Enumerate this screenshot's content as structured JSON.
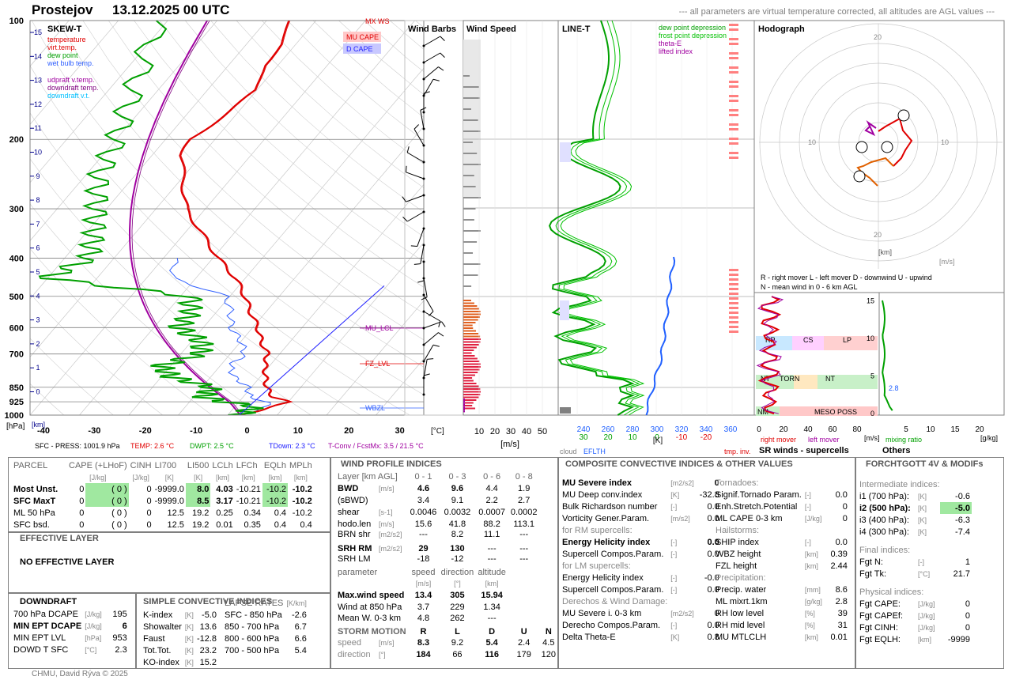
{
  "header": {
    "location": "Prostejov",
    "datetime": "13.12.2025 00 UTC",
    "note": "--- all parameters are virtual temperature corrected, all altitudes are AGL values ---"
  },
  "skewt": {
    "title": "SKEW-T",
    "legend": [
      {
        "t": "temperature",
        "c": "#e00000"
      },
      {
        "t": "virt.temp.",
        "c": "#e00000"
      },
      {
        "t": "dew point",
        "c": "#00a000"
      },
      {
        "t": "wet bulb temp.",
        "c": "#3060ff"
      },
      {
        "t": "udpraft v.temp.",
        "c": "#a000a0"
      },
      {
        "t": "downdraft temp.",
        "c": "#800080"
      },
      {
        "t": "downdraft v.t.",
        "c": "#00c0ff"
      }
    ],
    "pressure_ticks": [
      "100",
      "200",
      "300",
      "400",
      "500",
      "600",
      "700",
      "850",
      "925",
      "1000"
    ],
    "temp_ticks": [
      "-40",
      "-30",
      "-20",
      "-10",
      "0",
      "10",
      "20",
      "30"
    ],
    "km_ticks": [
      "15",
      "14",
      "13",
      "12",
      "11",
      "10",
      "9",
      "8",
      "7",
      "6",
      "5",
      "4",
      "3",
      "2",
      "1",
      "0"
    ],
    "p_unit": "[hPa]",
    "km_unit": "[km]",
    "t_unit": "[°C]",
    "labels": {
      "mxws": "MX WS",
      "mucape": "MU CAPE",
      "dcape": "D CAPE",
      "mulcl": "MU_LCL",
      "fzlvl": "FZ_LVL",
      "wbzl": "WBZL"
    },
    "footer": {
      "sfc": "SFC - PRESS: 1001.9 hPa",
      "temp": "TEMP: 2.6 °C",
      "dwpt": "DWPT: 2.5 °C",
      "tdown": "TDown: 2.3 °C",
      "tconv": "T-Conv / FcstMx: 3.5 / 21.5 °C"
    }
  },
  "chart_data": [
    {
      "type": "line",
      "title": "SKEW-T",
      "xlabel": "[°C]",
      "ylabel": "[hPa]",
      "ylim": [
        1000,
        100
      ],
      "xlim": [
        -40,
        40
      ],
      "series": [
        {
          "name": "temperature",
          "p": [
            1000,
            950,
            925,
            900,
            850,
            800,
            750,
            700,
            650,
            600,
            550,
            500,
            450,
            400,
            350,
            300,
            250,
            220,
            200,
            170,
            150,
            130,
            115,
            100
          ],
          "t": [
            2.6,
            8,
            10,
            6,
            3,
            1,
            -1,
            -2.5,
            -6,
            -9,
            -13,
            -17,
            -22,
            -29,
            -36,
            -44,
            -50,
            -54,
            -55,
            -52,
            -50,
            -53,
            -53,
            -55
          ]
        },
        {
          "name": "dew point",
          "p": [
            1000,
            950,
            925,
            900,
            850,
            800,
            750,
            700,
            650,
            600,
            550,
            500,
            450,
            400,
            350,
            300,
            250,
            200,
            150,
            100
          ],
          "t": [
            2.5,
            4,
            -3,
            -8,
            -8,
            -18,
            -22,
            -16,
            -18,
            -25,
            -25,
            -28,
            -60,
            -55,
            -58,
            -62,
            -67,
            -70,
            -75,
            -82
          ]
        }
      ]
    },
    {
      "type": "line",
      "title": "Wind Speed",
      "xlabel": "[m/s]",
      "x_ticks": [
        "10",
        "20",
        "30",
        "40",
        "50"
      ]
    },
    {
      "type": "line",
      "title": "LINE-T",
      "xlabel": "[K]",
      "x_ticks_1": [
        "240",
        "260",
        "280",
        "300",
        "320",
        "340",
        "360"
      ],
      "x_ticks_2": [
        "30",
        "20",
        "10",
        "0",
        "-10",
        "-20"
      ]
    },
    {
      "type": "scatter",
      "title": "Hodograph",
      "rings": [
        "10",
        "20"
      ]
    }
  ],
  "windbarbs": {
    "title": "Wind Barbs"
  },
  "windspeed": {
    "title": "Wind Speed",
    "unit": "[m/s]",
    "ticks": [
      "10",
      "20",
      "30",
      "40",
      "50"
    ]
  },
  "linet": {
    "title": "LINE-T",
    "legend": [
      "dew point depression",
      "frost point depression",
      "theta-E",
      "lifted index"
    ],
    "kticks": [
      "240",
      "260",
      "280",
      "300",
      "320",
      "340",
      "360"
    ],
    "dticks": [
      "30",
      "20",
      "10",
      "0",
      "-10",
      "-20"
    ],
    "unit": "[K]",
    "cloud": "cloud",
    "eflth": "EFLTH",
    "tmp": "tmp. inv."
  },
  "hodograph": {
    "title": "Hodograph",
    "legend1": "R - right mover      L - left mover          D - downwind     U - upwind",
    "legend2": "N - mean wind in 0 - 6 km AGL",
    "km": "[km]",
    "ms": "[m/s]",
    "ticks": [
      "20",
      "10",
      "10",
      "20"
    ]
  },
  "srwinds": {
    "title": "SR winds - supercells",
    "rm": "right mover",
    "lm": "left mover",
    "unit": "[m/s]",
    "xt": [
      "0",
      "20",
      "40",
      "60",
      "80"
    ],
    "yt": [
      "15",
      "10",
      "5",
      "0"
    ],
    "labels": [
      "RP",
      "CS",
      "LP",
      "NT",
      "TORN",
      "NT",
      "NM",
      "MESO POSS"
    ]
  },
  "others": {
    "title": "Others",
    "mix": "mixing ratio",
    "unit": "[g/kg]",
    "xt": [
      "5",
      "10",
      "15",
      "20"
    ],
    "val": "2.8"
  },
  "parcel": {
    "title": "PARCEL",
    "cols": [
      "CAPE (+LHoF)",
      "CINH",
      "LI700",
      "LI500",
      "LCLh",
      "LFCh",
      "EQLh",
      "MPLh"
    ],
    "units": [
      "[J/kg]",
      "[J/kg]",
      "[K]",
      "[K]",
      "[km]",
      "[km]",
      "[km]",
      "[km]"
    ],
    "rows": [
      [
        "Most Unst.",
        "0",
        "( 0 )",
        "0",
        "-9999.0",
        "8.0",
        "4.03",
        "-10.21",
        "-10.2",
        "-10.2"
      ],
      [
        "SFC MaxT",
        "0",
        "( 0 )",
        "0",
        "-9999.0",
        "8.5",
        "3.17",
        "-10.21",
        "-10.2",
        "-10.2"
      ],
      [
        "ML 50 hPa",
        "0",
        "( 0 )",
        "0",
        "12.5",
        "19.2",
        "0.25",
        "0.34",
        "0.4",
        "-10.2"
      ],
      [
        "SFC bsd.",
        "0",
        "( 0 )",
        "0",
        "12.5",
        "19.2",
        "0.01",
        "0.35",
        "0.4",
        "0.4"
      ]
    ]
  },
  "effective": {
    "title": "EFFECTIVE LAYER",
    "text": "NO EFFECTIVE LAYER"
  },
  "downdraft": {
    "title": "DOWNDRAFT",
    "rows": [
      [
        "700 hPa DCAPE",
        "[J/kg]",
        "195"
      ],
      [
        "MIN EPT DCAPE",
        "[J/kg]",
        "6"
      ],
      [
        "MIN EPT LVL",
        "[hPa]",
        "953"
      ],
      [
        "DOWD T SFC",
        "[°C]",
        "2.3"
      ]
    ]
  },
  "simple": {
    "title": "SIMPLE CONVECTIVE INDICES",
    "lapse": "LAPSE RATES",
    "lapse_u": "[K/km]",
    "rows": [
      [
        "K-index",
        "[K]",
        "-5.0",
        "SFC - 850 hPa",
        "-2.6"
      ],
      [
        "Showalter",
        "[K]",
        "13.6",
        "850 - 700 hPa",
        "6.7"
      ],
      [
        "Faust",
        "[K]",
        "-12.8",
        "800 - 600 hPa",
        "6.6"
      ],
      [
        "Tot.Tot.",
        "[K]",
        "23.2",
        "700 - 500 hPa",
        "5.4"
      ],
      [
        "KO-index",
        "[K]",
        "15.2",
        "",
        ""
      ]
    ]
  },
  "windprof": {
    "title": "WIND PROFILE INDICES",
    "layer": "Layer [km AGL]",
    "cols": [
      "0 - 1",
      "0 - 3",
      "0 - 6",
      "0 - 8"
    ],
    "rows": [
      [
        "BWD",
        "[m/s]",
        "4.6",
        "9.6",
        "4.4",
        "1.9"
      ],
      [
        "(sBWD)",
        "",
        "3.4",
        "9.1",
        "2.2",
        "2.7"
      ],
      [
        "shear",
        "[s-1]",
        "0.0046",
        "0.0032",
        "0.0007",
        "0.0002"
      ],
      [
        "hodo.len",
        "[m/s]",
        "15.6",
        "41.8",
        "88.2",
        "113.1"
      ],
      [
        "BRN shr",
        "[m2/s2]",
        "---",
        "8.2",
        "11.1",
        "---"
      ],
      [
        "SRH RM",
        "[m2/s2]",
        "29",
        "130",
        "---",
        "---"
      ],
      [
        "SRH LM",
        "",
        "-18",
        "-12",
        "---",
        "---"
      ]
    ],
    "param": [
      "parameter",
      "speed",
      "direction",
      "altitude"
    ],
    "param_u": [
      "[m/s]",
      "[°]",
      "[km]"
    ],
    "maxw": [
      [
        "Max.wind speed",
        "13.4",
        "305",
        "15.94"
      ],
      [
        "Wind at 850 hPa",
        "3.7",
        "229",
        "1.34"
      ],
      [
        "Mean W. 0-3 km",
        "4.8",
        "262",
        "---"
      ]
    ],
    "storm": {
      "title": "STORM MOTION",
      "cols": [
        "R",
        "L",
        "D",
        "U",
        "N"
      ],
      "speed": [
        "8.3",
        "9.2",
        "5.4",
        "2.4",
        "4.5"
      ],
      "dir": [
        "184",
        "66",
        "116",
        "179",
        "120"
      ],
      "sl": "speed",
      "dl": "direction",
      "su": "[m/s]",
      "du": "[°]"
    }
  },
  "composite": {
    "title": "COMPOSITE CONVECTIVE INDICES & OTHER VALUES",
    "left": [
      [
        "MU Severe index",
        "[m2/s2]",
        "0",
        1
      ],
      [
        "MU Deep conv.index",
        "[K]",
        "-32.8",
        0
      ],
      [
        "Bulk Richardson number",
        "[-]",
        "0.0",
        0
      ],
      [
        "Vorticity Gener.Param.",
        "[m/s2]",
        "0.0",
        0
      ],
      [
        "for RM supercells:",
        "",
        "",
        2
      ],
      [
        "Energy Helicity index",
        "[-]",
        "0.0",
        1
      ],
      [
        "Supercell Compos.Param.",
        "[-]",
        "0.0",
        0
      ],
      [
        "for LM supercells:",
        "",
        "",
        2
      ],
      [
        "Energy Helicity index",
        "[-]",
        "-0.0",
        0
      ],
      [
        "Supercell Compos.Param.",
        "[-]",
        "0.0",
        0
      ],
      [
        "Derechos & Wind Damage:",
        "",
        "",
        2
      ],
      [
        "MU Severe i. 0-3 km",
        "[m2/s2]",
        "0",
        0
      ],
      [
        "Derecho Compos.Param.",
        "[-]",
        "0.0",
        0
      ],
      [
        "Delta Theta-E",
        "[K]",
        "0.8",
        0
      ]
    ],
    "right": [
      [
        "Tornadoes:",
        "",
        "",
        2
      ],
      [
        "Signif.Tornado Param.",
        "[-]",
        "0.0",
        0
      ],
      [
        "Enh.Stretch.Potential",
        "[-]",
        "0",
        0
      ],
      [
        "ML CAPE 0-3 km",
        "[J/kg]",
        "0",
        0
      ],
      [
        "Hailstorms:",
        "",
        "",
        2
      ],
      [
        "SHIP index",
        "[-]",
        "0.0",
        0
      ],
      [
        "WBZ height",
        "[km]",
        "0.39",
        0
      ],
      [
        "FZL height",
        "[km]",
        "2.44",
        0
      ],
      [
        "Precipitation:",
        "",
        "",
        2
      ],
      [
        "Precip. water",
        "[mm]",
        "8.6",
        0
      ],
      [
        "ML mixrt.1km",
        "[g/kg]",
        "2.8",
        0
      ],
      [
        "RH low level",
        "[%]",
        "39",
        0
      ],
      [
        "RH mid level",
        "[%]",
        "31",
        0
      ],
      [
        "MU MTLCLH",
        "[km]",
        "0.01",
        0
      ]
    ]
  },
  "forchtgott": {
    "title": "FORCHTGOTT 4V & MODIFs",
    "sub1": "Intermediate indices:",
    "inter": [
      [
        "i1 (700 hPa):",
        "[K]",
        "-0.6"
      ],
      [
        "i2 (500 hPa):",
        "[K]",
        "-5.0"
      ],
      [
        "i3 (400 hPa):",
        "[K]",
        "-6.3"
      ],
      [
        "i4 (300 hPa):",
        "[K]",
        "-7.4"
      ]
    ],
    "sub2": "Final indices:",
    "final": [
      [
        "Fgt N:",
        "[-]",
        "1"
      ],
      [
        "Fgt Tk:",
        "[°C]",
        "21.7"
      ]
    ],
    "sub3": "Physical indices:",
    "phys": [
      [
        "Fgt CAPE:",
        "[J/kg]",
        "0"
      ],
      [
        "Fgt CAPEf:",
        "[J/kg]",
        "0"
      ],
      [
        "Fgt CINH:",
        "[J/kg]",
        "0"
      ],
      [
        "Fgt EQLH:",
        "[km]",
        "-9999"
      ]
    ]
  },
  "footer": {
    "credit": "CHMU, David Rýva © 2025"
  }
}
